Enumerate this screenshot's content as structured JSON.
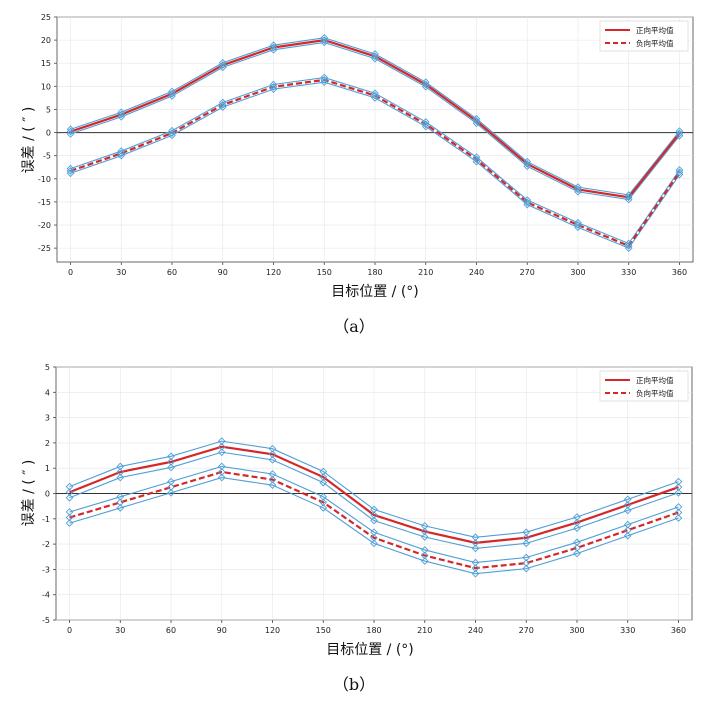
{
  "chart_data": [
    {
      "type": "line",
      "panel_label": "（a）",
      "xlabel": "目标位置 / (°)",
      "ylabel": "误差 / ( ″ )",
      "x": [
        0,
        30,
        60,
        90,
        120,
        150,
        180,
        210,
        240,
        270,
        300,
        330,
        360
      ],
      "xlim": [
        -8,
        368
      ],
      "ylim": [
        -28,
        25
      ],
      "yticks": [
        -25,
        -20,
        -15,
        -10,
        -5,
        0,
        5,
        10,
        15,
        20,
        25
      ],
      "grid": true,
      "legend_position": "top-right",
      "band_offset": 0.5,
      "series": [
        {
          "name": "正向平均值",
          "style": "solid",
          "color": "#d62728",
          "values": [
            0.2,
            3.9,
            8.4,
            14.6,
            18.4,
            20.0,
            16.5,
            10.4,
            2.5,
            -6.8,
            -12.3,
            -14.0,
            -0.2
          ]
        },
        {
          "name": "负向平均值",
          "style": "dashed",
          "color": "#d62728",
          "values": [
            -8.3,
            -4.5,
            -0.1,
            6.0,
            9.9,
            11.4,
            8.0,
            1.8,
            -5.8,
            -15.1,
            -20.0,
            -24.5,
            -8.6
          ]
        }
      ]
    },
    {
      "type": "line",
      "panel_label": "（b）",
      "xlabel": "目标位置 / (°)",
      "ylabel": "误差 / ( ″ )",
      "x": [
        0,
        30,
        60,
        90,
        120,
        150,
        180,
        210,
        240,
        270,
        300,
        330,
        360
      ],
      "xlim": [
        -8,
        368
      ],
      "ylim": [
        -5,
        5
      ],
      "yticks": [
        -5,
        -4,
        -3,
        -2,
        -1,
        0,
        1,
        2,
        3,
        4,
        5
      ],
      "grid": true,
      "legend_position": "top-right",
      "band_offset": 0.22,
      "series": [
        {
          "name": "正向平均值",
          "style": "solid",
          "color": "#d62728",
          "values": [
            0.05,
            0.85,
            1.25,
            1.85,
            1.55,
            0.65,
            -0.85,
            -1.5,
            -1.95,
            -1.75,
            -1.15,
            -0.45,
            0.25
          ]
        },
        {
          "name": "负向平均值",
          "style": "dashed",
          "color": "#d62728",
          "values": [
            -0.95,
            -0.35,
            0.25,
            0.85,
            0.55,
            -0.35,
            -1.75,
            -2.45,
            -2.95,
            -2.75,
            -2.15,
            -1.45,
            -0.75
          ]
        }
      ]
    }
  ],
  "colors": {
    "band": "#4f9fd6",
    "mean": "#d62728",
    "zero_line": "#333333",
    "grid": "#e6e6e6",
    "axis": "#444444"
  }
}
